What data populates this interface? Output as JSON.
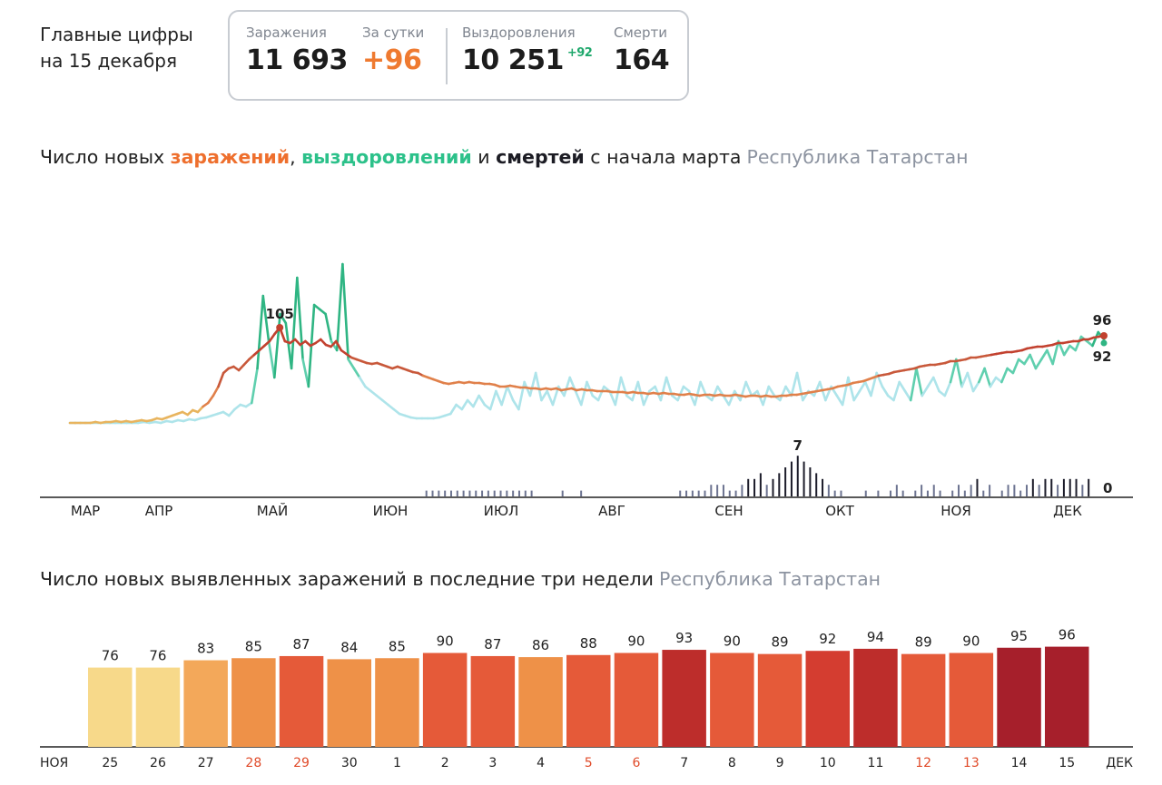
{
  "header": {
    "title_line1": "Главные цифры",
    "title_line2": "на 15 декабря"
  },
  "stats": {
    "infections_label": "Заражения",
    "infections_value": "11 693",
    "daily_label": "За сутки",
    "daily_value": "+96",
    "recoveries_label": "Выздоровления",
    "recoveries_value": "10 251",
    "recoveries_delta": "+92",
    "deaths_label": "Смерти",
    "deaths_value": "164"
  },
  "main_chart_title": {
    "part1": "Число новых ",
    "infections": "заражений",
    "part2": ", ",
    "recoveries": "выздоровлений",
    "part3": " и ",
    "deaths": "смертей",
    "part4": " с начала марта",
    "region": "Республика Татарстан"
  },
  "bar_chart_title": {
    "text": "Число новых выявленных заражений в последние три недели",
    "region": "Республика Татарстан"
  },
  "colors": {
    "infections_line": "#e0804a",
    "infections_peak": "#c2412f",
    "recoveries_light": "#aee4ea",
    "recoveries_dark": "#2fb583",
    "deaths_bars": "#6c7390",
    "deaths_peak": "#1c1c2a",
    "weekend_label": "#e04b2a"
  },
  "chart_data": [
    {
      "type": "line",
      "months": [
        "МАР",
        "АПР",
        "МАЙ",
        "ИЮН",
        "ИЮЛ",
        "АВГ",
        "СЕН",
        "ОКТ",
        "НОЯ",
        "ДЕК"
      ],
      "series": [
        {
          "name": "заражений",
          "values": [
            0,
            0,
            0,
            0,
            0,
            1,
            0,
            1,
            1,
            2,
            1,
            2,
            1,
            2,
            3,
            2,
            3,
            5,
            4,
            6,
            8,
            10,
            12,
            9,
            14,
            12,
            18,
            22,
            30,
            40,
            55,
            60,
            62,
            58,
            64,
            70,
            75,
            80,
            85,
            90,
            98,
            105,
            90,
            88,
            92,
            86,
            90,
            85,
            88,
            92,
            86,
            84,
            90,
            80,
            76,
            72,
            70,
            68,
            66,
            65,
            66,
            64,
            62,
            60,
            62,
            60,
            58,
            56,
            55,
            52,
            50,
            48,
            46,
            44,
            43,
            44,
            45,
            44,
            45,
            44,
            44,
            43,
            43,
            42,
            40,
            40,
            41,
            40,
            39,
            39,
            38,
            38,
            37,
            38,
            37,
            38,
            36,
            37,
            38,
            36,
            37,
            36,
            36,
            35,
            35,
            35,
            34,
            34,
            34,
            33,
            34,
            33,
            33,
            32,
            33,
            32,
            33,
            32,
            32,
            31,
            31,
            32,
            31,
            30,
            31,
            31,
            30,
            31,
            30,
            30,
            31,
            30,
            29,
            30,
            30,
            29,
            30,
            29,
            29,
            30,
            30,
            31,
            31,
            32,
            33,
            34,
            35,
            36,
            37,
            38,
            40,
            41,
            42,
            44,
            45,
            46,
            48,
            50,
            52,
            53,
            54,
            56,
            57,
            58,
            59,
            60,
            62,
            63,
            64,
            64,
            65,
            66,
            68,
            68,
            69,
            70,
            72,
            72,
            73,
            74,
            75,
            76,
            77,
            78,
            78,
            79,
            80,
            82,
            83,
            84,
            84,
            85,
            86,
            88,
            88,
            89,
            90,
            90,
            92,
            92,
            94,
            95,
            96
          ]
        },
        {
          "name": "выздоровлений",
          "values": [
            0,
            0,
            0,
            0,
            0,
            0,
            0,
            0,
            0,
            0,
            0,
            0,
            0,
            1,
            0,
            1,
            0,
            2,
            1,
            3,
            2,
            4,
            3,
            5,
            6,
            8,
            10,
            12,
            8,
            15,
            20,
            18,
            22,
            60,
            140,
            90,
            50,
            120,
            110,
            60,
            160,
            70,
            40,
            130,
            125,
            120,
            90,
            80,
            175,
            70,
            60,
            50,
            40,
            35,
            30,
            25,
            20,
            15,
            10,
            8,
            6,
            5,
            5,
            5,
            5,
            6,
            8,
            10,
            20,
            15,
            25,
            18,
            30,
            20,
            15,
            35,
            20,
            40,
            25,
            15,
            45,
            30,
            55,
            25,
            35,
            20,
            40,
            30,
            50,
            35,
            20,
            45,
            30,
            25,
            40,
            35,
            20,
            50,
            30,
            25,
            45,
            20,
            35,
            40,
            25,
            50,
            30,
            25,
            40,
            35,
            20,
            45,
            30,
            25,
            40,
            30,
            20,
            35,
            25,
            45,
            30,
            35,
            20,
            40,
            30,
            25,
            40,
            30,
            55,
            25,
            35,
            30,
            45,
            25,
            40,
            30,
            20,
            50,
            25,
            35,
            45,
            30,
            55,
            40,
            30,
            25,
            45,
            35,
            25,
            60,
            30,
            40,
            50,
            35,
            30,
            45,
            70,
            40,
            55,
            35,
            45,
            60,
            40,
            50,
            45,
            60,
            55,
            70,
            65,
            75,
            60,
            70,
            80,
            65,
            90,
            75,
            85,
            80,
            95,
            90,
            85,
            100,
            92
          ]
        },
        {
          "name": "смертей",
          "values": [
            0,
            0,
            0,
            0,
            0,
            0,
            0,
            0,
            0,
            0,
            0,
            0,
            0,
            0,
            0,
            0,
            0,
            0,
            0,
            0,
            0,
            0,
            0,
            0,
            0,
            0,
            0,
            0,
            0,
            1,
            1,
            1,
            1,
            1,
            1,
            1,
            1,
            1,
            1,
            1,
            1,
            1,
            1,
            1,
            1,
            1,
            1,
            0,
            0,
            0,
            0,
            1,
            0,
            0,
            1,
            0,
            0,
            0,
            0,
            0,
            0,
            0,
            0,
            0,
            0,
            0,
            0,
            0,
            0,
            0,
            1,
            1,
            1,
            1,
            1,
            2,
            2,
            2,
            1,
            1,
            2,
            3,
            3,
            4,
            2,
            3,
            4,
            5,
            6,
            7,
            6,
            5,
            4,
            3,
            2,
            1,
            1,
            0,
            0,
            0,
            1,
            0,
            1,
            0,
            1,
            2,
            1,
            0,
            1,
            2,
            1,
            2,
            1,
            0,
            1,
            2,
            1,
            2,
            3,
            1,
            2,
            0,
            1,
            2,
            2,
            1,
            2,
            3,
            2,
            3,
            3,
            2,
            3,
            3,
            3,
            2,
            3,
            0
          ]
        }
      ],
      "annotations": [
        {
          "series": "заражений",
          "label": "105"
        },
        {
          "series": "заражений",
          "label": "96"
        },
        {
          "series": "выздоровлений",
          "label": "92"
        },
        {
          "series": "смертей",
          "label": "7"
        },
        {
          "series": "смертей",
          "label": "0"
        }
      ]
    },
    {
      "type": "bar",
      "range_start_label": "НОЯ",
      "range_end_label": "ДЕК",
      "categories": [
        "25",
        "26",
        "27",
        "28",
        "29",
        "30",
        "1",
        "2",
        "3",
        "4",
        "5",
        "6",
        "7",
        "8",
        "9",
        "10",
        "11",
        "12",
        "13",
        "14",
        "15"
      ],
      "values": [
        76,
        76,
        83,
        85,
        87,
        84,
        85,
        90,
        87,
        86,
        88,
        90,
        93,
        90,
        89,
        92,
        94,
        89,
        90,
        95,
        96
      ],
      "weekend": [
        false,
        false,
        false,
        true,
        true,
        false,
        false,
        false,
        false,
        false,
        true,
        true,
        false,
        false,
        false,
        false,
        false,
        true,
        true,
        false,
        false
      ],
      "ylim": [
        0,
        100
      ]
    }
  ]
}
